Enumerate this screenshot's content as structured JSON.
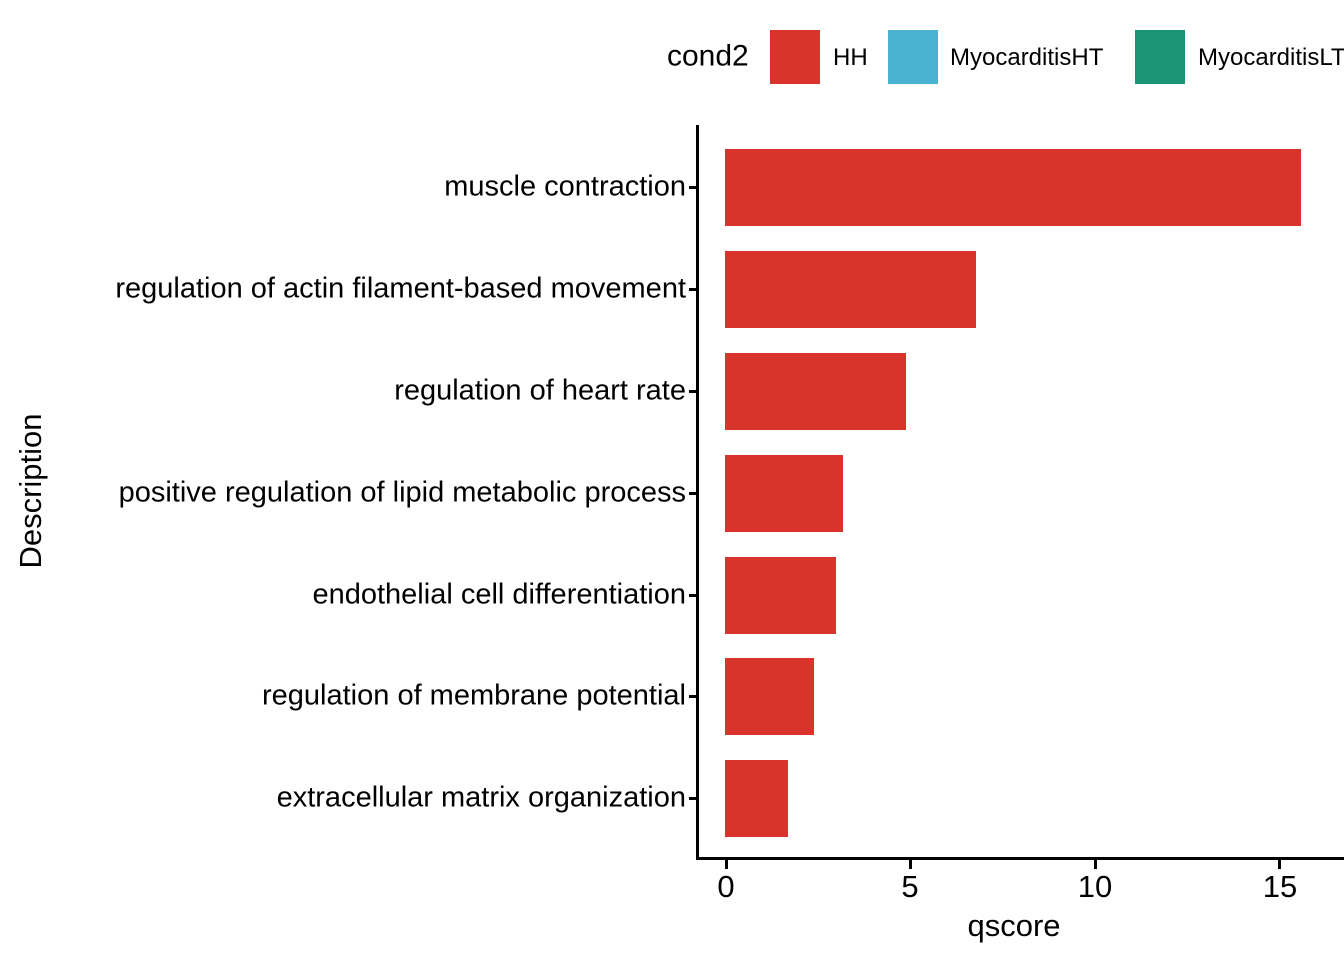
{
  "legend": {
    "title": "cond2",
    "items": [
      {
        "label": "HH",
        "color": "#D9342B"
      },
      {
        "label": "MyocarditisHT",
        "color": "#4AB3D1"
      },
      {
        "label": "MyocarditisLT",
        "color": "#1A9676"
      }
    ]
  },
  "chart_data": {
    "type": "bar",
    "orientation": "horizontal",
    "title": "",
    "xlabel": "qscore",
    "ylabel": "Description",
    "categories": [
      "muscle contraction",
      "regulation of actin filament-based movement",
      "regulation of heart rate",
      "positive regulation of lipid metabolic process",
      "endothelial cell differentiation",
      "regulation of membrane potential",
      "extracellular matrix organization"
    ],
    "values": [
      15.6,
      6.8,
      4.9,
      3.2,
      3.0,
      2.4,
      1.7
    ],
    "series_name": "HH",
    "bar_color": "#D9342B",
    "xlim": [
      0,
      16.8
    ],
    "x_ticks": [
      "0",
      "5",
      "10",
      "15"
    ],
    "grid": false,
    "legend_position": "top",
    "legend_title": "cond2"
  }
}
